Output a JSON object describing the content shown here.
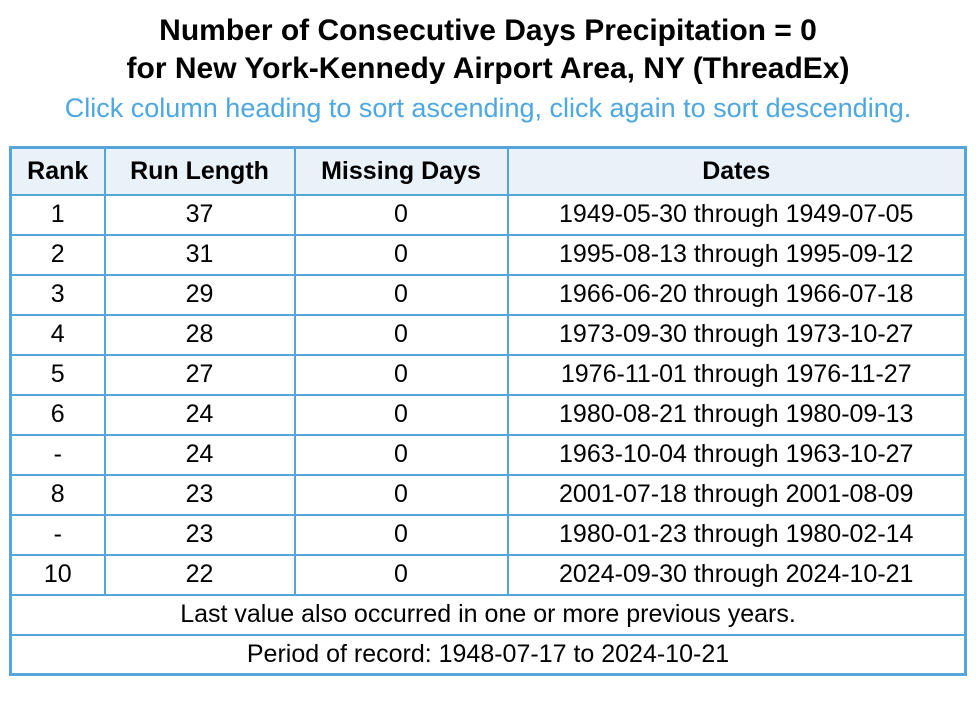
{
  "title_line1": "Number of Consecutive Days Precipitation = 0",
  "title_line2": "for New York-Kennedy Airport Area, NY (ThreadEx)",
  "subtitle": "Click column heading to sort ascending, click again to sort descending.",
  "table": {
    "headers": [
      "Rank",
      "Run Length",
      "Missing Days",
      "Dates"
    ],
    "rows": [
      [
        "1",
        "37",
        "0",
        "1949-05-30 through 1949-07-05"
      ],
      [
        "2",
        "31",
        "0",
        "1995-08-13 through 1995-09-12"
      ],
      [
        "3",
        "29",
        "0",
        "1966-06-20 through 1966-07-18"
      ],
      [
        "4",
        "28",
        "0",
        "1973-09-30 through 1973-10-27"
      ],
      [
        "5",
        "27",
        "0",
        "1976-11-01 through 1976-11-27"
      ],
      [
        "6",
        "24",
        "0",
        "1980-08-21 through 1980-09-13"
      ],
      [
        "-",
        "24",
        "0",
        "1963-10-04 through 1963-10-27"
      ],
      [
        "8",
        "23",
        "0",
        "2001-07-18 through 2001-08-09"
      ],
      [
        "-",
        "23",
        "0",
        "1980-01-23 through 1980-02-14"
      ],
      [
        "10",
        "22",
        "0",
        "2024-09-30 through 2024-10-21"
      ]
    ],
    "footnotes": [
      "Last value also occurred in one or more previous years.",
      "Period of record: 1948-07-17 to 2024-10-21"
    ]
  },
  "colors": {
    "border_color": "#55a5d9",
    "header_bg": "#e9f1f9",
    "subtitle_color": "#4da7e0"
  }
}
